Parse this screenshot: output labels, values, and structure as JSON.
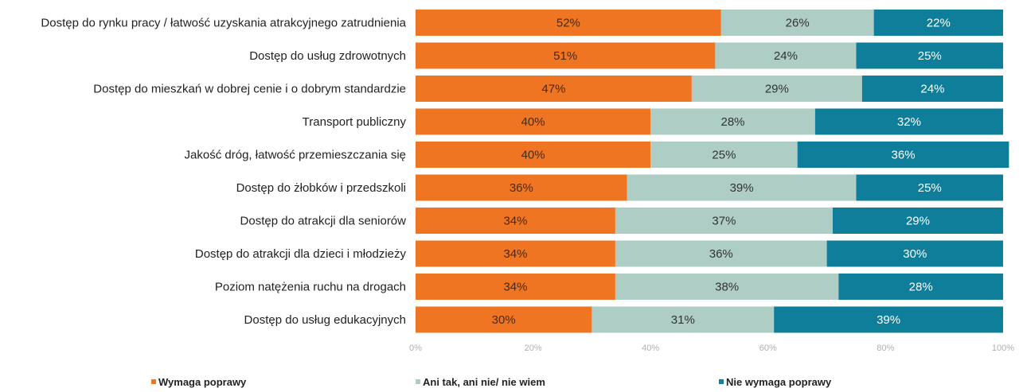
{
  "chart_data": {
    "type": "bar",
    "orientation": "horizontal",
    "stacked": true,
    "percent_stacked": true,
    "categories": [
      "Dostęp do rynku pracy / łatwość uzyskania atrakcyjnego zatrudnienia",
      "Dostęp do usług zdrowotnych",
      "Dostęp do mieszkań w dobrej cenie i o dobrym standardzie",
      "Transport publiczny",
      "Jakość dróg, łatwość przemieszczania się",
      "Dostęp do żłobków i przedszkoli",
      "Dostęp do atrakcji dla seniorów",
      "Dostęp do atrakcji dla dzieci i młodzieży",
      "Poziom natężenia ruchu na drogach",
      "Dostęp do usług edukacyjnych"
    ],
    "series": [
      {
        "name": "Wymaga poprawy",
        "color": "#EF7523",
        "label_color": "#4a2a10",
        "values": [
          52,
          51,
          47,
          40,
          40,
          36,
          34,
          34,
          34,
          30
        ]
      },
      {
        "name": "Ani tak, ani nie/ nie wiem",
        "color": "#ADCDC5",
        "label_color": "#333333",
        "values": [
          26,
          24,
          29,
          28,
          25,
          39,
          37,
          36,
          38,
          31
        ]
      },
      {
        "name": "Nie wymaga poprawy",
        "color": "#0E7E9A",
        "label_color": "#ffffff",
        "values": [
          22,
          25,
          24,
          32,
          36,
          25,
          29,
          30,
          28,
          39
        ]
      }
    ],
    "value_labels": [
      [
        "52%",
        "51%",
        "47%",
        "40%",
        "40%",
        "36%",
        "34%",
        "34%",
        "34%",
        "30%"
      ],
      [
        "26%",
        "24%",
        "29%",
        "28%",
        "25%",
        "39%",
        "37%",
        "36%",
        "38%",
        "31%"
      ],
      [
        "22%",
        "25%",
        "24%",
        "32%",
        "36%",
        "25%",
        "29%",
        "30%",
        "28%",
        "39%"
      ]
    ],
    "xlim": [
      0,
      100
    ],
    "x_ticks": [
      "0%",
      "20%",
      "40%",
      "60%",
      "80%",
      "100%"
    ],
    "grid": false,
    "legend_position": "bottom"
  }
}
